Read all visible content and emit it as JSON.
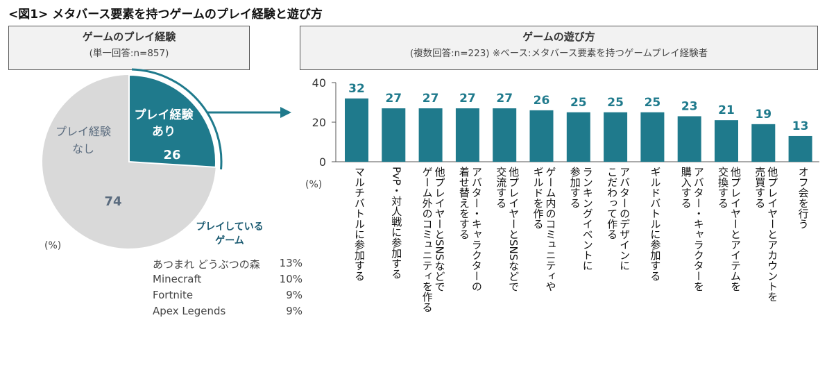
{
  "figure_title": "<図1> メタバース要素を持つゲームのプレイ経験と遊び方",
  "left_panel": {
    "title": "ゲームのプレイ経験",
    "subtitle": "(単一回答:n=857)",
    "percent_unit": "(%)"
  },
  "right_panel": {
    "title": "ゲームの遊び方",
    "subtitle": "(複数回答:n=223) ※ベース:メタバース要素を持つゲームプレイ経験者",
    "percent_unit": "(%)"
  },
  "games": {
    "title_line1": "プレイしている",
    "title_line2": "ゲーム",
    "items": [
      {
        "name": "あつまれ どうぶつの森",
        "pct": "13%"
      },
      {
        "name": "Minecraft",
        "pct": "10%"
      },
      {
        "name": "Fortnite",
        "pct": "9%"
      },
      {
        "name": "Apex Legends",
        "pct": "9%"
      }
    ]
  },
  "colors": {
    "accent": "#1f7a8c",
    "pie_rest": "#d9d9d9",
    "pie_rest_text": "#5a6b7e",
    "value_label": "#1f7a8c"
  },
  "chart_data": [
    {
      "type": "pie",
      "title": "ゲームのプレイ経験",
      "slices": [
        {
          "label_line1": "プレイ経験",
          "label_line2": "あり",
          "value": 26
        },
        {
          "label_line1": "プレイ経験",
          "label_line2": "なし",
          "value": 74
        }
      ]
    },
    {
      "type": "bar",
      "title": "ゲームの遊び方",
      "ylabel": "(%)",
      "ylim": [
        0,
        40
      ],
      "yticks": [
        0,
        20,
        40
      ],
      "categories": [
        "マルチバトルに参加する",
        "PvP・対人戦に参加する",
        "他プレイヤーとSNSなどで|ゲーム外のコミュニティを作る",
        "アバター・キャラクターの|着せ替えをする",
        "他プレイヤーとSNSなどで|交流する",
        "ゲーム内のコミュニティや|ギルドを作る",
        "ランキングイベントに|参加する",
        "アバターのデザインに|こだわって作る",
        "ギルドバトルに参加する",
        "アバター・キャラクターを|購入する",
        "他プレイヤーとアイテムを|交換する",
        "他プレイヤーとアカウントを|売買する",
        "オフ会を行う"
      ],
      "values": [
        32,
        27,
        27,
        27,
        27,
        26,
        25,
        25,
        25,
        23,
        21,
        19,
        13
      ]
    }
  ]
}
